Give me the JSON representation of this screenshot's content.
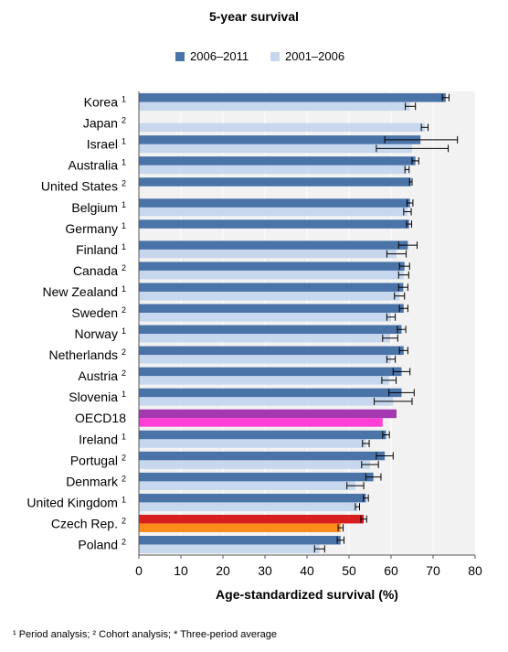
{
  "chart_data": {
    "type": "bar",
    "orientation": "horizontal",
    "title": "5-year survival",
    "xlabel": "Age-standardized survival (%)",
    "xlim": [
      0,
      80
    ],
    "xticks": [
      0,
      10,
      20,
      30,
      40,
      50,
      60,
      70,
      80
    ],
    "grid": true,
    "legend_position": "top",
    "series_names": [
      "2006–2011",
      "2001–2006"
    ],
    "colors": {
      "series_2006_2011": "#4a73a8",
      "series_2001_2006": "#c6d7ee",
      "oecd_2006_2011": "#a338b0",
      "oecd_2001_2006": "#ff3fd8",
      "czech_2006_2011": "#d81e1e",
      "czech_2001_2006": "#ff8c1a",
      "background": "#f2f2f2",
      "grid": "#ffffff"
    },
    "categories": [
      {
        "name": "Korea",
        "sup": "1",
        "v1": 73.0,
        "e1": [
          72.2,
          73.8
        ],
        "v2": 64.5,
        "e2": [
          63.4,
          65.8
        ]
      },
      {
        "name": "Japan",
        "sup": "2",
        "v1": null,
        "e1": null,
        "v2": 68.0,
        "e2": [
          67.2,
          68.8
        ]
      },
      {
        "name": "Israel",
        "sup": "1",
        "v1": 67.0,
        "e1": [
          58.5,
          75.8
        ],
        "v2": 65.0,
        "e2": [
          56.5,
          73.6
        ]
      },
      {
        "name": "Australia",
        "sup": "1",
        "v1": 65.8,
        "e1": [
          65.0,
          66.6
        ],
        "v2": 63.8,
        "e2": [
          63.3,
          64.3
        ]
      },
      {
        "name": "United States",
        "sup": "2",
        "v1": 64.7,
        "e1": [
          64.4,
          65.0
        ],
        "v2": null,
        "e2": null
      },
      {
        "name": "Belgium",
        "sup": "1",
        "v1": 64.5,
        "e1": [
          63.8,
          65.2
        ],
        "v2": 63.9,
        "e2": [
          63.0,
          64.8
        ]
      },
      {
        "name": "Germany",
        "sup": "1",
        "v1": 64.3,
        "e1": [
          63.7,
          64.9
        ],
        "v2": null,
        "e2": null
      },
      {
        "name": "Finland",
        "sup": "1",
        "v1": 64.0,
        "e1": [
          61.8,
          66.2
        ],
        "v2": 61.3,
        "e2": [
          59.0,
          63.6
        ]
      },
      {
        "name": "Canada",
        "sup": "2",
        "v1": 63.2,
        "e1": [
          62.0,
          64.4
        ],
        "v2": 63.0,
        "e2": [
          61.8,
          64.2
        ]
      },
      {
        "name": "New Zealand",
        "sup": "1",
        "v1": 62.9,
        "e1": [
          61.8,
          64.0
        ],
        "v2": 62.0,
        "e2": [
          60.8,
          63.2
        ]
      },
      {
        "name": "Sweden",
        "sup": "2",
        "v1": 63.0,
        "e1": [
          62.0,
          64.0
        ],
        "v2": 60.0,
        "e2": [
          59.0,
          61.0
        ]
      },
      {
        "name": "Norway",
        "sup": "1",
        "v1": 62.5,
        "e1": [
          61.5,
          63.5
        ],
        "v2": 59.8,
        "e2": [
          58.0,
          61.6
        ]
      },
      {
        "name": "Netherlands",
        "sup": "2",
        "v1": 63.0,
        "e1": [
          62.0,
          64.0
        ],
        "v2": 60.0,
        "e2": [
          59.0,
          61.0
        ]
      },
      {
        "name": "Austria",
        "sup": "2",
        "v1": 62.5,
        "e1": [
          60.5,
          64.5
        ],
        "v2": 59.5,
        "e2": [
          57.8,
          61.2
        ]
      },
      {
        "name": "Slovenia",
        "sup": "1",
        "v1": 62.5,
        "e1": [
          59.5,
          65.5
        ],
        "v2": 60.5,
        "e2": [
          56.0,
          65.0
        ]
      },
      {
        "name": "OECD18",
        "sup": "",
        "v1": 61.3,
        "e1": null,
        "v2": 58.0,
        "e2": null
      },
      {
        "name": "Ireland",
        "sup": "1",
        "v1": 58.8,
        "e1": [
          58.0,
          59.6
        ],
        "v2": 54.0,
        "e2": [
          53.2,
          54.8
        ]
      },
      {
        "name": "Portugal",
        "sup": "2",
        "v1": 58.5,
        "e1": [
          56.5,
          60.5
        ],
        "v2": 55.0,
        "e2": [
          53.0,
          57.0
        ]
      },
      {
        "name": "Denmark",
        "sup": "2",
        "v1": 55.8,
        "e1": [
          54.0,
          57.6
        ],
        "v2": 51.5,
        "e2": [
          49.5,
          53.5
        ]
      },
      {
        "name": "United Kingdom",
        "sup": "1",
        "v1": 54.0,
        "e1": [
          53.4,
          54.6
        ],
        "v2": 52.0,
        "e2": [
          51.5,
          52.5
        ]
      },
      {
        "name": "Czech Rep.",
        "sup": "2",
        "v1": 53.5,
        "e1": [
          52.8,
          54.2
        ],
        "v2": 48.0,
        "e2": [
          47.4,
          48.6
        ]
      },
      {
        "name": "Poland",
        "sup": "2",
        "v1": 48.0,
        "e1": [
          47.2,
          48.8
        ],
        "v2": 43.0,
        "e2": [
          41.8,
          44.2
        ]
      }
    ]
  },
  "footnote": "¹ Period analysis; ² Cohort analysis; * Three-period average"
}
